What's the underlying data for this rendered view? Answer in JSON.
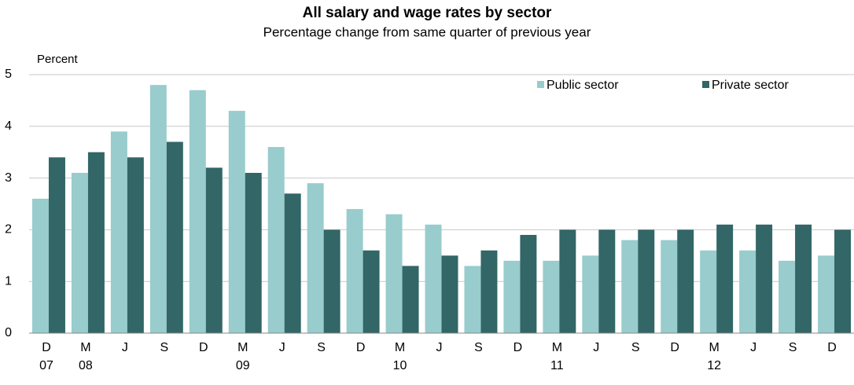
{
  "chart_data": {
    "type": "bar",
    "title": "All salary and wage rates by sector",
    "subtitle": "Percentage change from same quarter of previous  year",
    "y_label": "Percent",
    "categories": [
      "D",
      "M",
      "J",
      "S",
      "D",
      "M",
      "J",
      "S",
      "D",
      "M",
      "J",
      "S",
      "D",
      "M",
      "J",
      "S",
      "D",
      "M",
      "J",
      "S",
      "D"
    ],
    "year_labels": [
      "07",
      "08",
      null,
      null,
      null,
      "09",
      null,
      null,
      null,
      "10",
      null,
      null,
      null,
      "11",
      null,
      null,
      null,
      "12",
      null,
      null,
      null
    ],
    "series": [
      {
        "name": "Public sector",
        "color": "#99cccc",
        "values": [
          2.6,
          3.1,
          3.9,
          4.8,
          4.7,
          4.3,
          3.6,
          2.9,
          2.4,
          2.3,
          2.1,
          1.3,
          1.4,
          1.4,
          1.5,
          1.8,
          1.8,
          1.6,
          1.6,
          1.4,
          1.5
        ]
      },
      {
        "name": "Private sector",
        "color": "#336666",
        "values": [
          3.4,
          3.5,
          3.4,
          3.7,
          3.2,
          3.1,
          2.7,
          2.0,
          1.6,
          1.3,
          1.5,
          1.6,
          1.9,
          2.0,
          2.0,
          2.0,
          2.0,
          2.1,
          2.1,
          2.1,
          2.0
        ]
      }
    ],
    "ylim": [
      0,
      5
    ],
    "yticks": [
      0,
      1,
      2,
      3,
      4,
      5
    ],
    "grid": true,
    "legend": "top-right"
  }
}
